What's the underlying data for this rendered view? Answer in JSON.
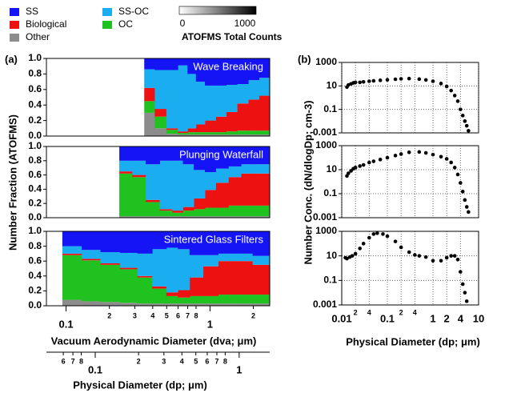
{
  "panel_labels": [
    "(a)",
    "(b)"
  ],
  "colorbar": {
    "title": "ATOFMS Total Counts",
    "clim": [
      0,
      1000
    ],
    "ticks": [
      0,
      1000
    ]
  },
  "chart_data": [
    {
      "type": "area",
      "title": "Wave Breaking",
      "xscale": "log",
      "stacked": true,
      "xlim": [
        0.073,
        2.6
      ],
      "ylim": [
        0,
        1
      ],
      "yticks": [
        {
          "value": 0,
          "label": "0.0"
        },
        0.2,
        0.4,
        0.6,
        0.8,
        {
          "value": 1,
          "label": "1.0"
        }
      ],
      "x": [
        0.38,
        0.45,
        0.55,
        0.65,
        0.75,
        0.85,
        1.0,
        1.2,
        1.4,
        1.7,
        2.0,
        2.4
      ],
      "series": [
        {
          "name": "Other",
          "color": "#8c8c8c",
          "values": [
            0.3,
            0.1,
            0.03,
            0.02,
            0.02,
            0.02,
            0.02,
            0.02,
            0.02,
            0.02,
            0.02,
            0.02
          ]
        },
        {
          "name": "OC",
          "color": "#1fc21f",
          "values": [
            0.15,
            0.15,
            0.05,
            0.02,
            0.03,
            0.03,
            0.03,
            0.03,
            0.04,
            0.05,
            0.05,
            0.05
          ]
        },
        {
          "name": "Biological",
          "color": "#ee1111",
          "values": [
            0.17,
            0.1,
            0.02,
            0.02,
            0.05,
            0.1,
            0.15,
            0.2,
            0.25,
            0.35,
            0.4,
            0.45
          ]
        },
        {
          "name": "SS-OC",
          "color": "#1aaef0",
          "values": [
            0.24,
            0.5,
            0.75,
            0.85,
            0.7,
            0.55,
            0.45,
            0.4,
            0.35,
            0.25,
            0.25,
            0.23
          ]
        },
        {
          "name": "SS",
          "color": "#1414f5",
          "values": [
            0.14,
            0.15,
            0.15,
            0.09,
            0.2,
            0.3,
            0.35,
            0.35,
            0.34,
            0.33,
            0.28,
            0.25
          ]
        }
      ]
    },
    {
      "type": "area",
      "title": "Plunging Waterfall",
      "xscale": "log",
      "stacked": true,
      "ylabel": "Number Fraction (ATOFMS)",
      "xlim": [
        0.073,
        2.6
      ],
      "ylim": [
        0,
        1
      ],
      "yticks": [
        {
          "value": 0,
          "label": "0.0"
        },
        0.2,
        0.4,
        0.6,
        0.8,
        {
          "value": 1,
          "label": "1.0"
        }
      ],
      "x": [
        0.26,
        0.32,
        0.4,
        0.5,
        0.6,
        0.7,
        0.85,
        1.0,
        1.2,
        1.5,
        1.8,
        2.3
      ],
      "series": [
        {
          "name": "Other",
          "color": "#8c8c8c",
          "values": [
            0.02,
            0.02,
            0.02,
            0.02,
            0.02,
            0.02,
            0.02,
            0.02,
            0.02,
            0.02,
            0.02,
            0.02
          ]
        },
        {
          "name": "OC",
          "color": "#1fc21f",
          "values": [
            0.6,
            0.55,
            0.2,
            0.08,
            0.05,
            0.08,
            0.1,
            0.12,
            0.12,
            0.15,
            0.15,
            0.15
          ]
        },
        {
          "name": "Biological",
          "color": "#ee1111",
          "values": [
            0.03,
            0.03,
            0.03,
            0.02,
            0.03,
            0.05,
            0.15,
            0.25,
            0.35,
            0.4,
            0.45,
            0.45
          ]
        },
        {
          "name": "SS-OC",
          "color": "#1aaef0",
          "values": [
            0.15,
            0.2,
            0.5,
            0.68,
            0.7,
            0.6,
            0.4,
            0.25,
            0.2,
            0.15,
            0.13,
            0.13
          ]
        },
        {
          "name": "SS",
          "color": "#1414f5",
          "values": [
            0.2,
            0.2,
            0.25,
            0.2,
            0.2,
            0.25,
            0.33,
            0.36,
            0.31,
            0.28,
            0.25,
            0.25
          ]
        }
      ]
    },
    {
      "type": "area",
      "title": "Sintered Glass Filters",
      "xscale": "log",
      "stacked": true,
      "xlabel": "Vacuum Aerodynamic Diameter (dva; μm)",
      "xlim": [
        0.073,
        2.6
      ],
      "ylim": [
        0,
        1
      ],
      "yticks": [
        {
          "value": 0,
          "label": "0.0"
        },
        0.2,
        0.4,
        0.6,
        0.8,
        {
          "value": 1,
          "label": "1.0"
        }
      ],
      "xticks": [
        0.1,
        {
          "value": 0.2,
          "label": "2"
        },
        {
          "value": 0.3,
          "label": "3"
        },
        {
          "value": 0.4,
          "label": "4"
        },
        {
          "value": 0.5,
          "label": "5"
        },
        {
          "value": 0.6,
          "label": "6"
        },
        {
          "value": 0.7,
          "label": "7"
        },
        {
          "value": 0.8,
          "label": "8"
        },
        1,
        {
          "value": 2,
          "label": "2"
        }
      ],
      "x2label": "Physical Diameter (dp; μm)",
      "x2lim": [
        0.0458,
        1.63
      ],
      "x2ticks": [
        {
          "value": 0.06,
          "label": "6"
        },
        {
          "value": 0.07,
          "label": "7"
        },
        {
          "value": 0.08,
          "label": "8"
        },
        0.1,
        {
          "value": 0.2,
          "label": "2"
        },
        {
          "value": 0.3,
          "label": "3"
        },
        {
          "value": 0.4,
          "label": "4"
        },
        {
          "value": 0.5,
          "label": "5"
        },
        {
          "value": 0.6,
          "label": "6"
        },
        {
          "value": 0.7,
          "label": "7"
        },
        {
          "value": 0.8,
          "label": "8"
        },
        1
      ],
      "x": [
        0.11,
        0.15,
        0.2,
        0.28,
        0.35,
        0.45,
        0.55,
        0.65,
        0.8,
        1.0,
        1.3,
        1.7,
        2.3
      ],
      "series": [
        {
          "name": "Other",
          "color": "#8c8c8c",
          "values": [
            0.08,
            0.06,
            0.05,
            0.04,
            0.03,
            0.03,
            0.03,
            0.03,
            0.03,
            0.03,
            0.03,
            0.03,
            0.03
          ]
        },
        {
          "name": "OC",
          "color": "#1fc21f",
          "values": [
            0.6,
            0.55,
            0.5,
            0.45,
            0.35,
            0.2,
            0.1,
            0.08,
            0.1,
            0.1,
            0.12,
            0.12,
            0.12
          ]
        },
        {
          "name": "Biological",
          "color": "#ee1111",
          "values": [
            0.02,
            0.02,
            0.02,
            0.02,
            0.02,
            0.03,
            0.05,
            0.1,
            0.25,
            0.4,
            0.45,
            0.45,
            0.4
          ]
        },
        {
          "name": "SS-OC",
          "color": "#1aaef0",
          "values": [
            0.1,
            0.12,
            0.15,
            0.2,
            0.3,
            0.5,
            0.6,
            0.55,
            0.3,
            0.15,
            0.1,
            0.1,
            0.12
          ]
        },
        {
          "name": "SS",
          "color": "#1414f5",
          "values": [
            0.2,
            0.25,
            0.28,
            0.29,
            0.3,
            0.24,
            0.22,
            0.24,
            0.32,
            0.32,
            0.3,
            0.3,
            0.33
          ]
        }
      ]
    },
    {
      "type": "scatter",
      "xscale": "log",
      "yscale": "log",
      "grid": true,
      "color": "#000000",
      "xlim": [
        0.01,
        10
      ],
      "ylim": [
        0.001,
        1000
      ],
      "yticks": [
        1000,
        10,
        0.1,
        0.001
      ],
      "x": [
        0.013,
        0.014,
        0.016,
        0.018,
        0.02,
        0.025,
        0.03,
        0.04,
        0.05,
        0.07,
        0.1,
        0.15,
        0.2,
        0.3,
        0.5,
        0.7,
        1,
        1.5,
        2,
        2.5,
        3,
        3.5,
        4,
        4.5,
        5,
        5.5,
        6
      ],
      "values": [
        8,
        12,
        15,
        18,
        20,
        20,
        22,
        25,
        27,
        30,
        33,
        37,
        40,
        42,
        38,
        32,
        25,
        16,
        9,
        4,
        1.5,
        0.5,
        0.1,
        0.03,
        0.01,
        0.004,
        0.0015
      ]
    },
    {
      "type": "scatter",
      "xscale": "log",
      "yscale": "log",
      "grid": true,
      "color": "#000000",
      "ylabel": "Number Conc. (dN/dlogDp; cm-3)",
      "xlim": [
        0.01,
        10
      ],
      "ylim": [
        0.001,
        1000
      ],
      "yticks": [
        1000,
        10,
        0.1,
        0.001
      ],
      "x": [
        0.013,
        0.014,
        0.016,
        0.018,
        0.02,
        0.025,
        0.03,
        0.04,
        0.05,
        0.07,
        0.1,
        0.15,
        0.2,
        0.3,
        0.5,
        0.7,
        1,
        1.5,
        2,
        2.5,
        3,
        3.5,
        4,
        4.5,
        5,
        5.5,
        6
      ],
      "values": [
        3,
        5,
        8,
        12,
        15,
        20,
        25,
        40,
        50,
        70,
        100,
        150,
        200,
        280,
        300,
        250,
        180,
        120,
        80,
        40,
        15,
        4,
        0.8,
        0.15,
        0.03,
        0.008,
        0.003
      ]
    },
    {
      "type": "scatter",
      "xscale": "log",
      "yscale": "log",
      "grid": true,
      "color": "#000000",
      "xlabel": "Physical Diameter (dp; μm)",
      "xlim": [
        0.01,
        10
      ],
      "ylim": [
        0.001,
        1000
      ],
      "yticks": [
        1000,
        10,
        0.1,
        0.001
      ],
      "xticks": [
        0.01,
        {
          "value": 0.02,
          "label": "2"
        },
        {
          "value": 0.04,
          "label": "4"
        },
        0.1,
        {
          "value": 0.2,
          "label": "2"
        },
        {
          "value": 0.4,
          "label": "4"
        },
        1,
        2,
        4,
        10
      ],
      "x": [
        0.012,
        0.013,
        0.015,
        0.017,
        0.02,
        0.025,
        0.03,
        0.04,
        0.05,
        0.06,
        0.08,
        0.1,
        0.15,
        0.2,
        0.3,
        0.4,
        0.5,
        0.7,
        1,
        1.5,
        2,
        2.5,
        3,
        3.5,
        4,
        4.5,
        5,
        5.5
      ],
      "values": [
        7,
        6,
        8,
        10,
        15,
        40,
        100,
        300,
        600,
        700,
        600,
        400,
        150,
        50,
        20,
        12,
        10,
        8,
        4,
        4,
        7,
        10,
        10,
        5,
        0.5,
        0.05,
        0.01,
        0.002
      ]
    }
  ]
}
